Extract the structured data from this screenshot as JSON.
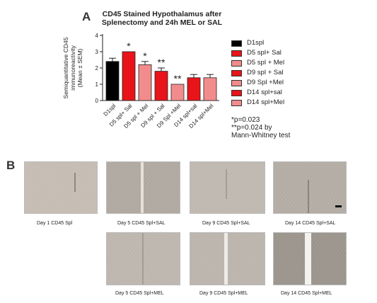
{
  "panel_a": {
    "letter": "A"
  },
  "panel_b": {
    "letter": "B"
  },
  "chart_data": {
    "type": "bar",
    "title": "CD45 Stained Hypothalamus after Splenectomy and 24h  MEL or SAL",
    "title_lines": [
      "CD45 Stained Hypothalamus after",
      "Splenectomy and 24h  MEL or SAL"
    ],
    "ylabel_lines": [
      "Semiquantitative CD45",
      "immunoreactivity",
      "(Mean ± SEM)"
    ],
    "ylim": [
      0,
      4
    ],
    "yticks": [
      "0",
      "1",
      "2",
      "3",
      "4"
    ],
    "categories": [
      "D1spl",
      "D5 spl+ Sal",
      "D5 spl + Mel",
      "D9 spl + Sal",
      "D9 Spl +Mel",
      "D14 spl+sal",
      "D14 spl+Mel"
    ],
    "values": [
      2.4,
      3.0,
      2.2,
      1.8,
      1.0,
      1.4,
      1.4
    ],
    "errors": [
      0.2,
      0.0,
      0.2,
      0.2,
      0.0,
      0.2,
      0.2
    ],
    "colors": [
      "#000000",
      "#e8141a",
      "#f28c8c",
      "#e8141a",
      "#f28c8c",
      "#e8141a",
      "#f28c8c"
    ],
    "annotations": [
      "",
      "*",
      "*",
      "**",
      "**",
      "",
      ""
    ],
    "legend": [
      {
        "label": "D1spl",
        "color": "#000000"
      },
      {
        "label": "D5 spl+ Sal",
        "color": "#e8141a"
      },
      {
        "label": "D5 spl + Mel",
        "color": "#f28c8c"
      },
      {
        "label": "D9 spl + Sal",
        "color": "#e8141a"
      },
      {
        "label": "D9 Spl +Mel",
        "color": "#f28c8c"
      },
      {
        "label": "D14 spl+sal",
        "color": "#e8141a"
      },
      {
        "label": "D14 spl+Mel",
        "color": "#f28c8c"
      }
    ],
    "notes": [
      "*p=0.023",
      "**p=0.024 by",
      "Mann-Whitney test"
    ]
  },
  "micrographs": [
    {
      "caption": "Day 1 CD45 Spl",
      "tone": "#c9c0b6",
      "line": "#8f8880"
    },
    {
      "caption": "Day 5 CD45 Spl+SAL",
      "tone": "#b3aca4",
      "line": "#e4e0da"
    },
    {
      "caption": "Day 9 CD45 Spl+SAL",
      "tone": "#c3bcb4",
      "line": "#a59e96"
    },
    {
      "caption": "Day 14 CD45 Spl+SAL",
      "tone": "#b7b0a8",
      "line": "#8a847c"
    },
    {
      "caption": "Day 5 CD45 Spl+MEL",
      "tone": "#c1bab2",
      "line": "#a49d95"
    },
    {
      "caption": "Day 9 CD45 Spl+MEL",
      "tone": "#bfb8b0",
      "line": "#eeeae6"
    },
    {
      "caption": "Day 14 CD45 Spl+MEL",
      "tone": "#9e9890",
      "line": "#f4f2ef"
    }
  ]
}
